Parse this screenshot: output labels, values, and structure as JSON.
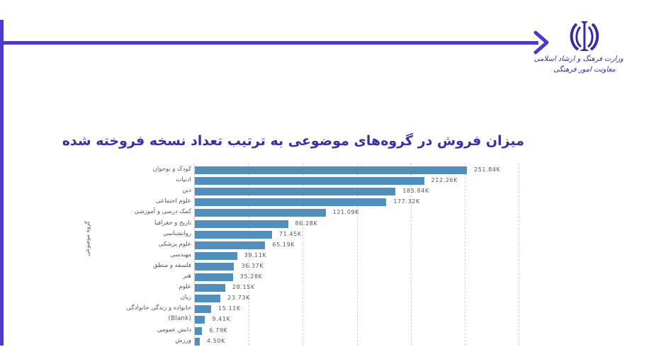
{
  "header": {
    "logo_line1": "وزارت فرهنگ و ارشاد اسلامی",
    "logo_line2": "معاونت امور فرهنگی",
    "accent_color": "#4b3acb"
  },
  "slide": {
    "title": "میزان فروش در گروه‌های موضوعی به ترتیب تعداد نسخه فروخته شده"
  },
  "chart_data": {
    "type": "bar",
    "orientation": "horizontal",
    "title": "میزان فروش در گروه‌های موضوعی به ترتیب تعداد نسخه فروخته شده",
    "ylabel": "گروه موضوعی",
    "xlabel": "",
    "bar_color": "#4f8fbd",
    "grid": "vertical dashed, every 50K",
    "xlim": [
      0,
      300000
    ],
    "categories": [
      "کودک و نوجوان",
      "ادبیات",
      "دین",
      "علوم اجتماعی",
      "کمک درسی و آموزشی",
      "تاریخ و جغرافیا",
      "روانشناسی",
      "علوم پزشکی",
      "مهندسی",
      "فلسفه و منطق",
      "هنر",
      "علوم",
      "زبان",
      "خانواده و زندگی خانوادگی",
      "(Blank)",
      "دانش عمومی",
      "ورزش"
    ],
    "values": [
      251840,
      212260,
      185840,
      177320,
      121090,
      86280,
      71450,
      65190,
      39110,
      36370,
      35280,
      28150,
      23730,
      15110,
      9410,
      6790,
      4500
    ],
    "labels": [
      "251.84K",
      "212.26K",
      "185.84K",
      "177.32K",
      "121.09K",
      "86.28K",
      "71.45K",
      "65.19K",
      "39.11K",
      "36.37K",
      "35.28K",
      "28.15K",
      "23.73K",
      "15.11K",
      "9.41K",
      "6.79K",
      "4.50K"
    ]
  }
}
